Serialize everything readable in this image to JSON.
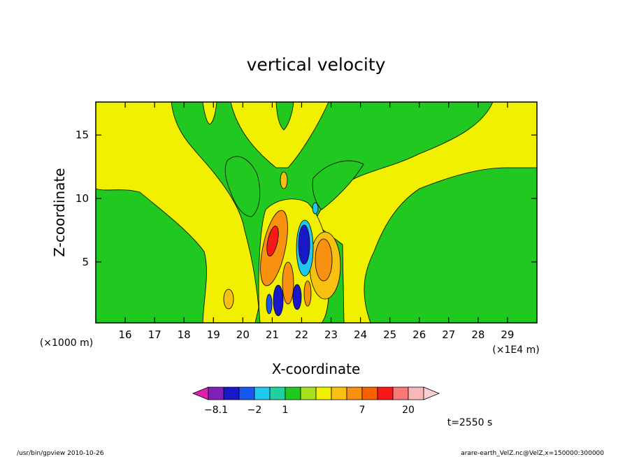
{
  "chart_data": {
    "type": "heatmap",
    "title": "vertical velocity",
    "xlabel": "X-coordinate",
    "ylabel": "Z-coordinate",
    "x_scale_label": "(×1E4 m)",
    "y_scale_label": "(×1000 m)",
    "x_ticks": [
      16,
      17,
      18,
      19,
      20,
      21,
      22,
      23,
      24,
      25,
      26,
      27,
      28,
      29
    ],
    "y_ticks": [
      5,
      10,
      15
    ],
    "xlim": [
      15,
      30
    ],
    "ylim": [
      0.2,
      17.6
    ],
    "colorbar": {
      "labels": [
        {
          "text": "−8.1",
          "slot": 1.5
        },
        {
          "text": "−2",
          "slot": 4
        },
        {
          "text": "1",
          "slot": 6
        },
        {
          "text": "7",
          "slot": 11
        },
        {
          "text": "20",
          "slot": 14
        }
      ],
      "colors": [
        "#e020b0",
        "#8020b8",
        "#1818c8",
        "#1858f0",
        "#20c8f0",
        "#20d0a0",
        "#20c820",
        "#a8e020",
        "#f0f000",
        "#f8c010",
        "#f89010",
        "#f86000",
        "#f81818",
        "#f87878",
        "#f8b8b8",
        "#f8d0d0"
      ]
    },
    "time_label": "t=2550 s"
  },
  "footer": {
    "left": "/usr/bin/gpview   2010-10-26",
    "right": "arare-earth_VelZ.nc@VelZ,x=150000:300000"
  }
}
